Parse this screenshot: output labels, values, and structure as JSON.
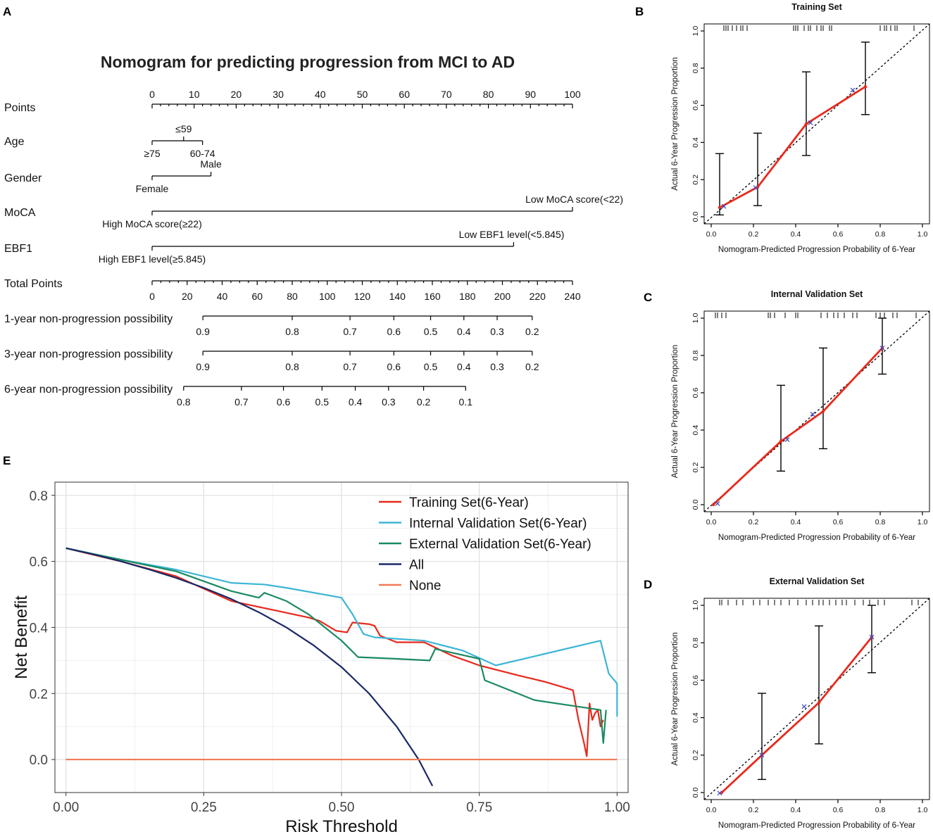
{
  "panel_labels": {
    "a": "A",
    "b": "B",
    "c": "C",
    "d": "D",
    "e": "E"
  },
  "chart_data": [
    {
      "type": "table",
      "panel": "A",
      "title": "Nomogram for predicting progression from MCI to AD",
      "points_scale": {
        "label": "Points",
        "min": 0,
        "max": 100,
        "labeled_ticks": [
          "0",
          "10",
          "20",
          "30",
          "40",
          "50",
          "60",
          "70",
          "80",
          "90",
          "100"
        ]
      },
      "variables": [
        {
          "label": "Age",
          "levels": [
            {
              "name": "≥75",
              "points": 0,
              "label_pos": "below"
            },
            {
              "name": "≤59",
              "points": 7.5,
              "label_pos": "above"
            },
            {
              "name": "60-74",
              "points": 12,
              "label_pos": "below"
            }
          ]
        },
        {
          "label": "Gender",
          "levels": [
            {
              "name": "Female",
              "points": 0,
              "label_pos": "below"
            },
            {
              "name": "Male",
              "points": 14,
              "label_pos": "above"
            }
          ]
        },
        {
          "label": "MoCA",
          "levels": [
            {
              "name": "High MoCA score(≥22)",
              "points": 0,
              "label_pos": "below"
            },
            {
              "name": "Low MoCA score(<22)",
              "points": 100,
              "label_pos": "above"
            }
          ]
        },
        {
          "label": "EBF1",
          "levels": [
            {
              "name": "High EBF1 level(≥5.845)",
              "points": 0,
              "label_pos": "below"
            },
            {
              "name": "Low EBF1 level(<5.845)",
              "points": 86,
              "label_pos": "above"
            }
          ]
        }
      ],
      "total_points": {
        "label": "Total Points",
        "min": 0,
        "max": 240,
        "labeled_ticks": [
          "0",
          "20",
          "40",
          "60",
          "80",
          "100",
          "120",
          "140",
          "160",
          "180",
          "200",
          "220",
          "240"
        ]
      },
      "probability_scales": [
        {
          "label": "1-year non-progression possibility",
          "ticks": [
            {
              "label": "0.9",
              "total_points": 29
            },
            {
              "label": "0.8",
              "total_points": 80
            },
            {
              "label": "0.7",
              "total_points": 113
            },
            {
              "label": "0.6",
              "total_points": 138
            },
            {
              "label": "0.5",
              "total_points": 159
            },
            {
              "label": "0.4",
              "total_points": 178
            },
            {
              "label": "0.3",
              "total_points": 197
            },
            {
              "label": "0.2",
              "total_points": 217
            }
          ]
        },
        {
          "label": "3-year non-progression possibility",
          "ticks": [
            {
              "label": "0.9",
              "total_points": 29
            },
            {
              "label": "0.8",
              "total_points": 80
            },
            {
              "label": "0.7",
              "total_points": 113
            },
            {
              "label": "0.6",
              "total_points": 138
            },
            {
              "label": "0.5",
              "total_points": 159
            },
            {
              "label": "0.4",
              "total_points": 178
            },
            {
              "label": "0.3",
              "total_points": 197
            },
            {
              "label": "0.2",
              "total_points": 217
            }
          ]
        },
        {
          "label": "6-year non-progression possibility",
          "ticks": [
            {
              "label": "0.8",
              "total_points": 18
            },
            {
              "label": "0.7",
              "total_points": 51
            },
            {
              "label": "0.6",
              "total_points": 75
            },
            {
              "label": "0.5",
              "total_points": 97
            },
            {
              "label": "0.4",
              "total_points": 116
            },
            {
              "label": "0.3",
              "total_points": 135
            },
            {
              "label": "0.2",
              "total_points": 155
            },
            {
              "label": "0.1",
              "total_points": 179
            }
          ]
        }
      ]
    },
    {
      "type": "scatter",
      "panel": "B",
      "title": "Training Set",
      "xlabel": "Nomogram-Predicted Progression Probability of 6-Year",
      "ylabel": "Actual 6-Year Progression Proportion",
      "xlim": [
        0,
        1
      ],
      "ylim": [
        0,
        1
      ],
      "ticks": [
        "0.0",
        "0.2",
        "0.4",
        "0.6",
        "0.8",
        "1.0"
      ],
      "points": [
        {
          "x": 0.04,
          "y": 0.05,
          "lo": 0.01,
          "hi": 0.34,
          "x_ideal": 0.06
        },
        {
          "x": 0.22,
          "y": 0.16,
          "lo": 0.06,
          "hi": 0.45,
          "x_ideal": 0.21
        },
        {
          "x": 0.45,
          "y": 0.5,
          "lo": 0.33,
          "hi": 0.78,
          "x_ideal": 0.47
        },
        {
          "x": 0.73,
          "y": 0.7,
          "lo": 0.55,
          "hi": 0.94,
          "x_ideal": 0.67
        }
      ],
      "rug": [
        0.06,
        0.07,
        0.08,
        0.1,
        0.12,
        0.14,
        0.15,
        0.17,
        0.39,
        0.4,
        0.41,
        0.44,
        0.46,
        0.47,
        0.5,
        0.52,
        0.53,
        0.56,
        0.57,
        0.8,
        0.82,
        0.83,
        0.85,
        0.87,
        0.88,
        0.96
      ]
    },
    {
      "type": "scatter",
      "panel": "C",
      "title": "Internal Validation Set",
      "xlabel": "Nomogram-Predicted Progression Probability of 6-Year",
      "ylabel": "Actual 6-Year Progression Proportion",
      "xlim": [
        0,
        1
      ],
      "ylim": [
        0,
        1
      ],
      "ticks": [
        "0.0",
        "0.2",
        "0.4",
        "0.6",
        "0.8",
        "1.0"
      ],
      "points": [
        {
          "x": 0.01,
          "y": 0.0,
          "lo": null,
          "hi": null,
          "x_ideal": 0.03
        },
        {
          "x": 0.33,
          "y": 0.34,
          "lo": 0.18,
          "hi": 0.64,
          "x_ideal": 0.36
        },
        {
          "x": 0.53,
          "y": 0.5,
          "lo": 0.3,
          "hi": 0.84,
          "x_ideal": 0.48
        },
        {
          "x": 0.81,
          "y": 0.84,
          "lo": 0.7,
          "hi": 1.0,
          "x_ideal": 0.81
        }
      ],
      "rug": [
        0.02,
        0.03,
        0.05,
        0.07,
        0.27,
        0.28,
        0.3,
        0.35,
        0.4,
        0.41,
        0.52,
        0.55,
        0.58,
        0.6,
        0.63,
        0.67,
        0.69,
        0.78,
        0.8,
        0.82,
        0.86,
        0.88,
        0.97
      ]
    },
    {
      "type": "scatter",
      "panel": "D",
      "title": "External Validation Set",
      "xlabel": "Nomogram-Predicted Progression Probability of 6-Year",
      "ylabel": "Actual 6-Year Progression Proportion",
      "xlim": [
        0,
        1
      ],
      "ylim": [
        0,
        1
      ],
      "ticks": [
        "0.0",
        "0.2",
        "0.4",
        "0.6",
        "0.8",
        "1.0"
      ],
      "points": [
        {
          "x": 0.05,
          "y": 0.0,
          "lo": null,
          "hi": null,
          "x_ideal": 0.04
        },
        {
          "x": 0.24,
          "y": 0.2,
          "lo": 0.07,
          "hi": 0.53,
          "x_ideal": 0.24
        },
        {
          "x": 0.51,
          "y": 0.48,
          "lo": 0.26,
          "hi": 0.89,
          "x_ideal": 0.44
        },
        {
          "x": 0.76,
          "y": 0.83,
          "lo": 0.64,
          "hi": 1.0,
          "x_ideal": 0.76
        }
      ],
      "rug": [
        0.04,
        0.05,
        0.08,
        0.12,
        0.15,
        0.2,
        0.23,
        0.27,
        0.3,
        0.33,
        0.37,
        0.41,
        0.45,
        0.48,
        0.51,
        0.53,
        0.56,
        0.59,
        0.62,
        0.64,
        0.68,
        0.72,
        0.75,
        0.79,
        0.82,
        0.95,
        0.98
      ]
    },
    {
      "type": "line",
      "panel": "E",
      "xlabel": "Risk Threshold",
      "ylabel": "Net Benefit",
      "xlim": [
        -0.02,
        1.02
      ],
      "ylim": [
        -0.1,
        0.84
      ],
      "xticks": [
        "0.00",
        "0.25",
        "0.50",
        "0.75",
        "1.00"
      ],
      "yticks": [
        "0.0",
        "0.2",
        "0.4",
        "0.6",
        "0.8"
      ],
      "series": [
        {
          "name": "Training Set(6-Year)",
          "color": "#e8291c",
          "x": [
            0,
            0.1,
            0.2,
            0.3,
            0.44,
            0.46,
            0.49,
            0.51,
            0.52,
            0.55,
            0.56,
            0.57,
            0.6,
            0.65,
            0.7,
            0.75,
            0.82,
            0.87,
            0.92,
            0.93,
            0.94,
            0.945,
            0.95,
            0.955,
            0.96,
            0.965,
            0.97,
            0.975
          ],
          "y": [
            0.64,
            0.6,
            0.555,
            0.48,
            0.43,
            0.42,
            0.39,
            0.385,
            0.415,
            0.41,
            0.405,
            0.375,
            0.355,
            0.355,
            0.315,
            0.285,
            0.255,
            0.235,
            0.21,
            0.12,
            0.05,
            0.01,
            0.17,
            0.12,
            0.14,
            0.15,
            0.1,
            0.12
          ]
        },
        {
          "name": "Internal Validation Set(6-Year)",
          "color": "#3db5d6",
          "x": [
            0,
            0.1,
            0.2,
            0.3,
            0.36,
            0.4,
            0.5,
            0.52,
            0.54,
            0.56,
            0.65,
            0.72,
            0.78,
            0.97,
            0.985,
            1.0,
            1.0
          ],
          "y": [
            0.64,
            0.605,
            0.575,
            0.535,
            0.53,
            0.52,
            0.49,
            0.44,
            0.38,
            0.37,
            0.36,
            0.33,
            0.285,
            0.36,
            0.26,
            0.23,
            0.13
          ]
        },
        {
          "name": "External Validation Set(6-Year)",
          "color": "#1a8a61",
          "x": [
            0,
            0.1,
            0.2,
            0.3,
            0.35,
            0.36,
            0.4,
            0.44,
            0.5,
            0.53,
            0.6,
            0.66,
            0.67,
            0.75,
            0.76,
            0.85,
            0.97,
            0.975,
            0.98
          ],
          "y": [
            0.64,
            0.605,
            0.57,
            0.51,
            0.49,
            0.505,
            0.48,
            0.44,
            0.36,
            0.31,
            0.305,
            0.3,
            0.335,
            0.305,
            0.24,
            0.18,
            0.15,
            0.05,
            0.15
          ]
        },
        {
          "name": "All",
          "color": "#1a2966",
          "x": [
            0,
            0.05,
            0.1,
            0.15,
            0.2,
            0.25,
            0.3,
            0.35,
            0.4,
            0.45,
            0.5,
            0.55,
            0.6,
            0.64,
            0.665
          ],
          "y": [
            0.64,
            0.621,
            0.6,
            0.576,
            0.55,
            0.52,
            0.486,
            0.446,
            0.4,
            0.345,
            0.28,
            0.2,
            0.1,
            0.0,
            -0.08
          ]
        },
        {
          "name": "None",
          "color": "#f07c58",
          "x": [
            0,
            1.0
          ],
          "y": [
            0.0,
            0.0
          ]
        }
      ]
    }
  ]
}
